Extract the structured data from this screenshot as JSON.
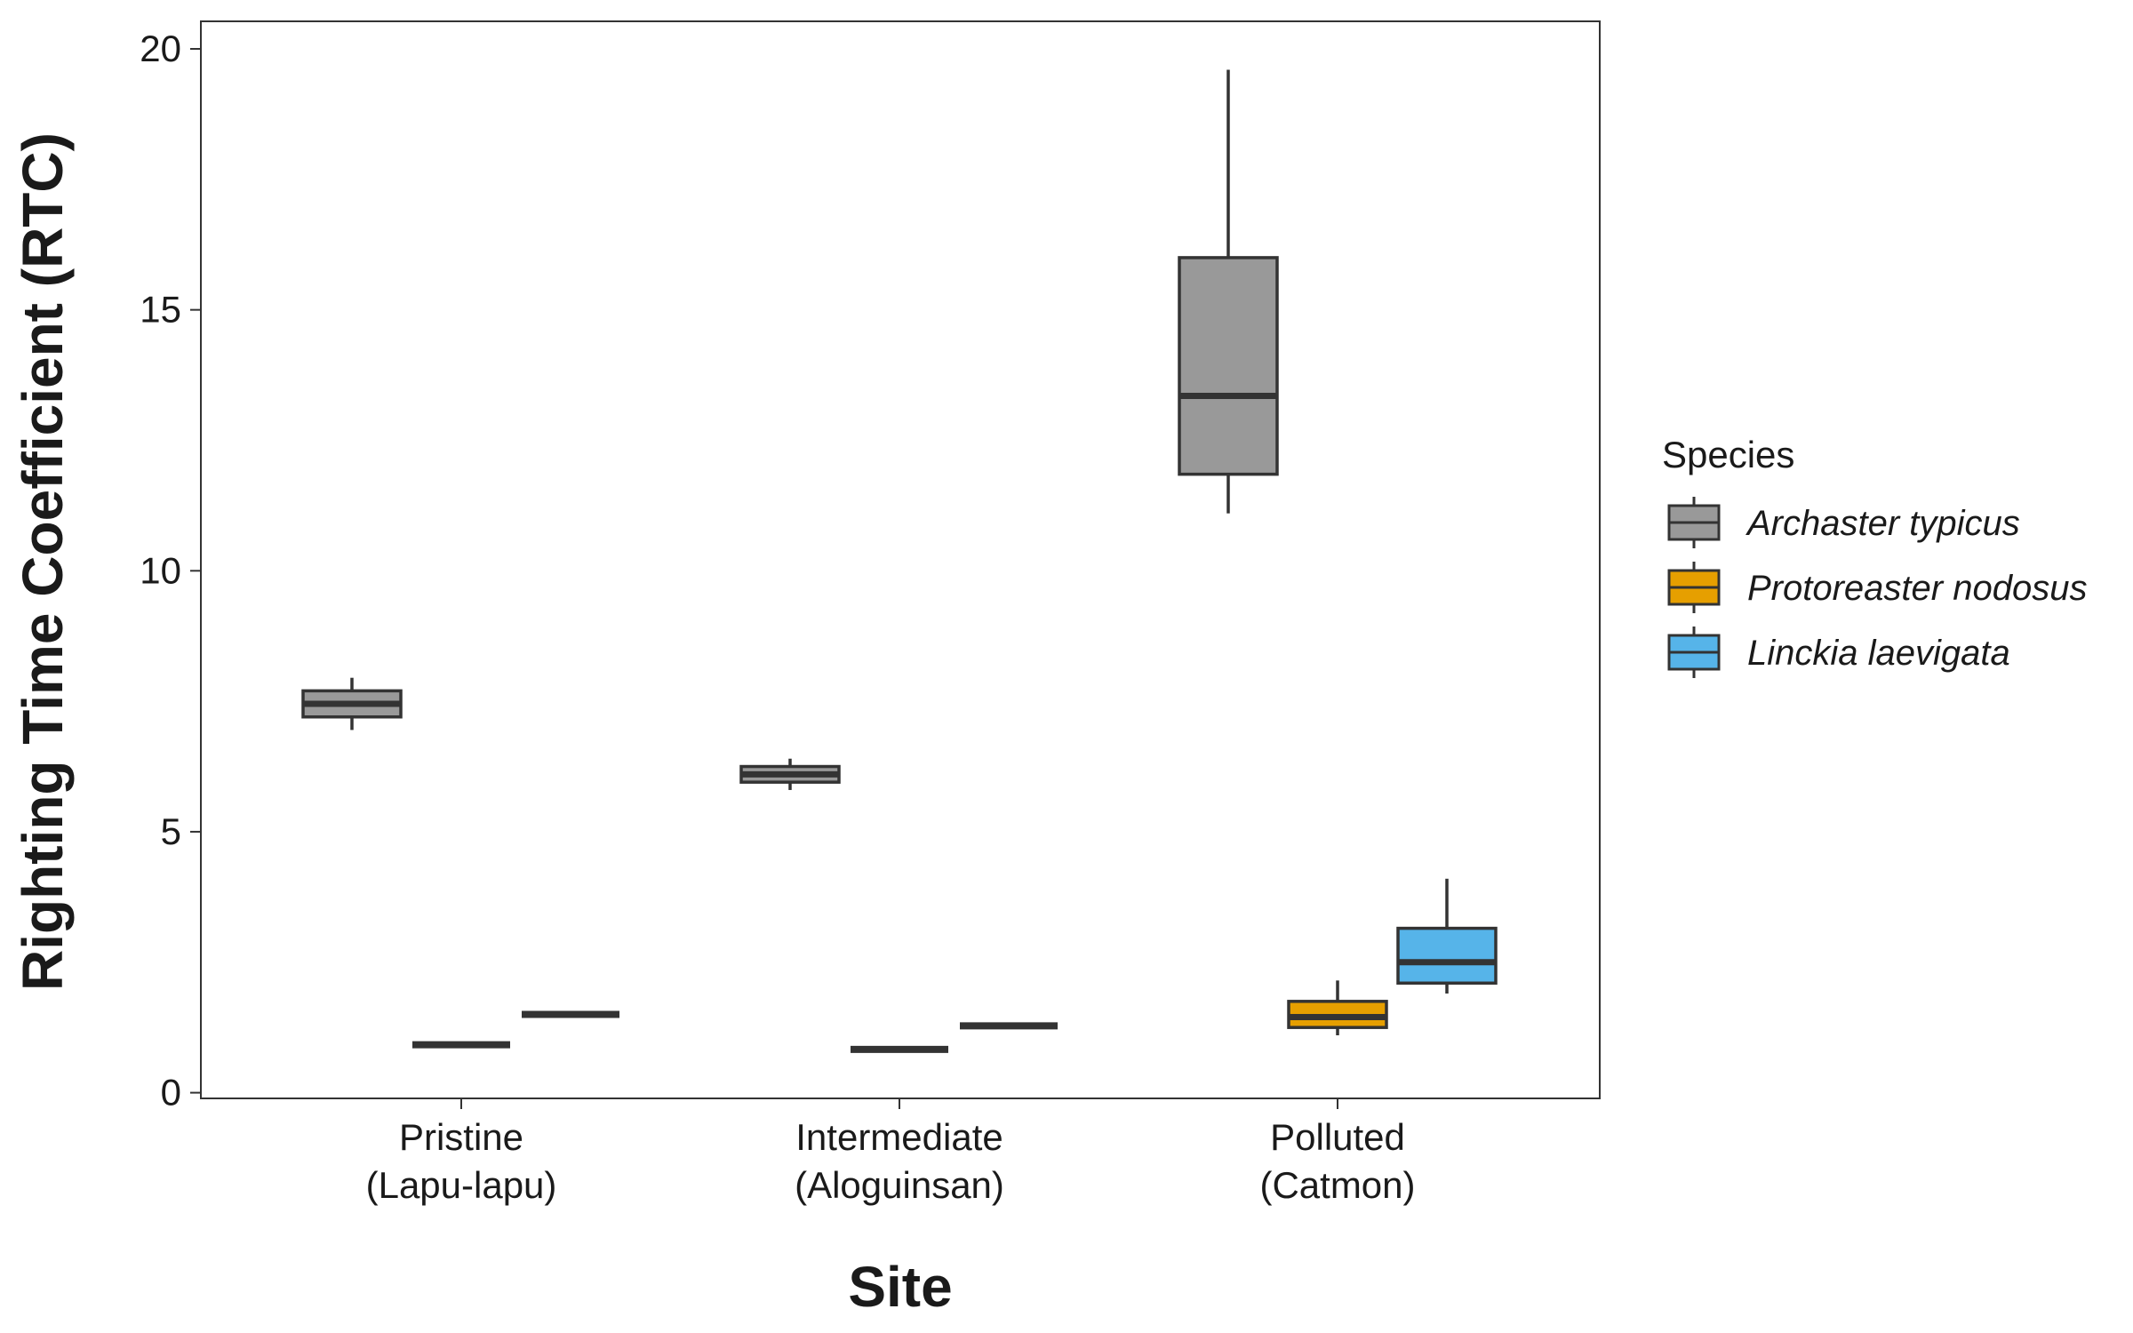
{
  "chart_data": {
    "type": "box",
    "xlabel": "Site",
    "ylabel": "Righting Time Coefficient (RTC)",
    "ylim": [
      -0.1,
      20.5
    ],
    "yticks": [
      0,
      5,
      10,
      15,
      20
    ],
    "ytick_labels": [
      "0",
      "5",
      "10",
      "15",
      "20"
    ],
    "categories": [
      {
        "line1": "Pristine",
        "line2": "(Lapu-lapu)"
      },
      {
        "line1": "Intermediate",
        "line2": "(Aloguinsan)"
      },
      {
        "line1": "Polluted",
        "line2": "(Catmon)"
      }
    ],
    "legend": {
      "title": "Species",
      "position": "right"
    },
    "grid": false,
    "series": [
      {
        "name": "Archaster typicus",
        "color": "#999999",
        "boxes": [
          {
            "whisker_low": 6.95,
            "q1": 7.2,
            "median": 7.45,
            "q3": 7.7,
            "whisker_high": 7.95
          },
          {
            "whisker_low": 5.8,
            "q1": 5.95,
            "median": 6.1,
            "q3": 6.25,
            "whisker_high": 6.4
          },
          {
            "whisker_low": 11.1,
            "q1": 11.85,
            "median": 13.35,
            "q3": 16.0,
            "whisker_high": 19.6
          }
        ]
      },
      {
        "name": "Protoreaster nodosus",
        "color": "#E69F00",
        "boxes": [
          {
            "whisker_low": 0.92,
            "q1": 0.92,
            "median": 0.92,
            "q3": 0.92,
            "whisker_high": 0.92
          },
          {
            "whisker_low": 0.83,
            "q1": 0.83,
            "median": 0.83,
            "q3": 0.83,
            "whisker_high": 0.83
          },
          {
            "whisker_low": 1.1,
            "q1": 1.25,
            "median": 1.45,
            "q3": 1.75,
            "whisker_high": 2.15
          }
        ]
      },
      {
        "name": "Linckia laevigata",
        "color": "#56B4E9",
        "boxes": [
          {
            "whisker_low": 1.5,
            "q1": 1.5,
            "median": 1.5,
            "q3": 1.5,
            "whisker_high": 1.5
          },
          {
            "whisker_low": 1.28,
            "q1": 1.28,
            "median": 1.28,
            "q3": 1.28,
            "whisker_high": 1.28
          },
          {
            "whisker_low": 1.9,
            "q1": 2.1,
            "median": 2.5,
            "q3": 3.15,
            "whisker_high": 4.1
          }
        ]
      }
    ]
  }
}
